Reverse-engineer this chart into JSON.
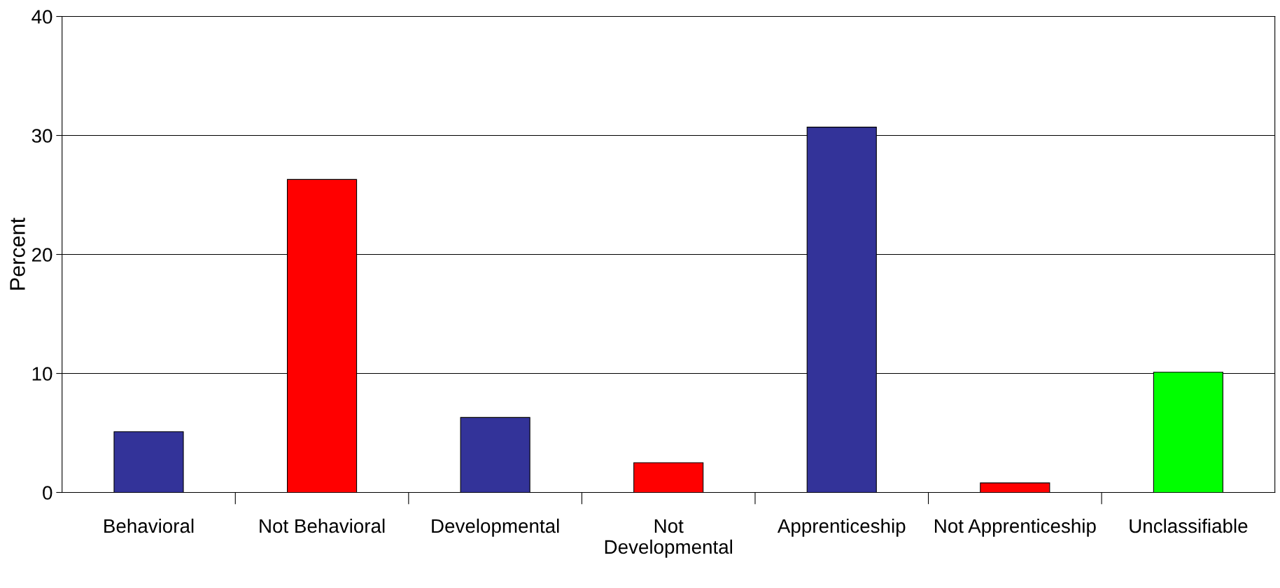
{
  "chart_data": {
    "type": "bar",
    "ylabel": "Percent",
    "categories": [
      "Behavioral",
      "Not Behavioral",
      "Developmental",
      "Not Developmental",
      "Apprenticeship",
      "Not Apprenticeship",
      "Unclassifiable"
    ],
    "values": [
      5.1,
      26.3,
      6.3,
      2.5,
      30.7,
      0.8,
      10.1
    ],
    "colors": [
      "#333399",
      "#ff0000",
      "#333399",
      "#ff0000",
      "#333399",
      "#ff0000",
      "#00ff00"
    ],
    "ylim": [
      0,
      40
    ],
    "yticks": [
      0,
      10,
      20,
      30,
      40
    ],
    "grid": "y",
    "legend": false
  }
}
